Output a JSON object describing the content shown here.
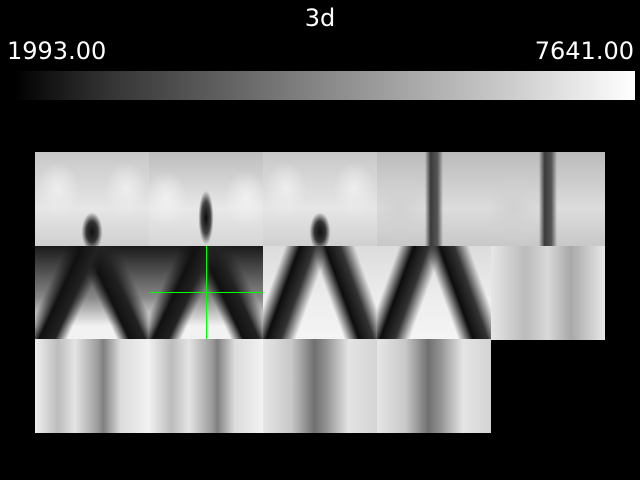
{
  "viewer": {
    "title": "3d",
    "colorbar": {
      "min_label": "1993.00",
      "max_label": "7641.00",
      "colormap": "grayscale",
      "low_color": "#000000",
      "high_color": "#ffffff"
    },
    "mosaic": {
      "rows": 3,
      "tiles_per_row": [
        5,
        5,
        4
      ]
    },
    "crosshair": {
      "color": "#00ff00"
    },
    "background": "#000000"
  }
}
